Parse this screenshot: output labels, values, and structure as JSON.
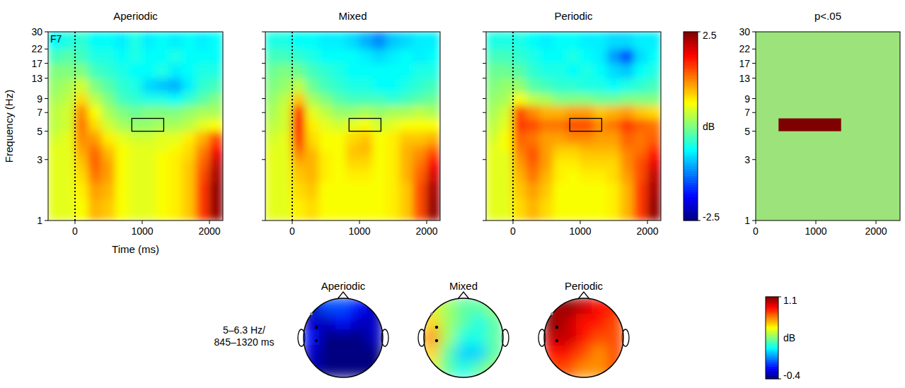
{
  "chart_data": [
    {
      "type": "heatmap",
      "title": "Aperiodic",
      "label": "F7",
      "xlabel": "Time (ms)",
      "ylabel": "Frequency (Hz)",
      "xlim": [
        -400,
        2200
      ],
      "xticks": [
        0,
        1000,
        2000
      ],
      "ylim": [
        1,
        30
      ],
      "yticks": [
        1,
        3,
        5,
        7,
        9,
        13,
        17,
        22,
        30
      ],
      "log": "y",
      "onset": 0,
      "box": {
        "x": [
          845,
          1320
        ],
        "y": [
          5,
          6.3
        ]
      },
      "x_bins": [
        -400,
        -200,
        0,
        200,
        400,
        600,
        800,
        1000,
        1200,
        1400,
        1600,
        1800,
        2000,
        2200
      ],
      "y_bins": [
        1,
        1.5,
        2,
        2.5,
        3,
        3.5,
        4,
        5,
        6.3,
        8,
        10,
        13,
        17,
        22,
        30
      ],
      "cells": [
        [
          0.5,
          0.5,
          0.6,
          1.0,
          0.9,
          0.6,
          0.5,
          0.5,
          0.6,
          0.7,
          0.9,
          1.6,
          2.4
        ],
        [
          0.5,
          0.5,
          0.7,
          1.1,
          1.0,
          0.6,
          0.5,
          0.5,
          0.6,
          0.7,
          0.9,
          1.6,
          2.4
        ],
        [
          0.5,
          0.5,
          0.8,
          1.3,
          1.1,
          0.6,
          0.5,
          0.5,
          0.6,
          0.7,
          0.9,
          1.5,
          2.3
        ],
        [
          0.5,
          0.5,
          0.9,
          1.4,
          1.1,
          0.6,
          0.5,
          0.5,
          0.6,
          0.7,
          0.9,
          1.4,
          2.2
        ],
        [
          0.5,
          0.5,
          1.0,
          1.4,
          1.0,
          0.6,
          0.5,
          0.5,
          0.6,
          0.7,
          0.8,
          1.3,
          2.0
        ],
        [
          0.5,
          0.5,
          1.1,
          1.3,
          0.9,
          0.6,
          0.5,
          0.5,
          0.5,
          0.6,
          0.8,
          1.2,
          1.8
        ],
        [
          0.4,
          0.5,
          1.2,
          1.1,
          0.7,
          0.5,
          0.4,
          0.4,
          0.5,
          0.5,
          0.7,
          1.0,
          1.5
        ],
        [
          0.3,
          0.4,
          1.3,
          0.8,
          0.4,
          0.2,
          0.1,
          0.1,
          0.2,
          0.2,
          0.3,
          0.5,
          0.6
        ],
        [
          0.3,
          0.4,
          1.2,
          0.6,
          0.2,
          0.0,
          -0.1,
          0.0,
          0.0,
          0.0,
          0.1,
          0.2,
          0.2
        ],
        [
          0.2,
          0.3,
          0.8,
          0.3,
          0.0,
          -0.3,
          -0.4,
          -0.5,
          -0.5,
          -0.6,
          -0.4,
          -0.2,
          0.0
        ],
        [
          0.1,
          0.2,
          0.4,
          0.0,
          -0.2,
          -0.4,
          -0.5,
          -0.8,
          -0.9,
          -1.0,
          -0.7,
          -0.4,
          -0.3
        ],
        [
          0.0,
          0.0,
          0.0,
          -0.3,
          -0.4,
          -0.5,
          -0.6,
          -0.6,
          -0.5,
          -0.7,
          -0.6,
          -0.5,
          -0.5
        ],
        [
          -0.3,
          -0.2,
          -0.3,
          -0.5,
          -0.5,
          -0.6,
          -0.5,
          -0.6,
          -0.6,
          -0.5,
          -0.6,
          -0.6,
          -0.6
        ],
        [
          -0.6,
          -0.5,
          -0.4,
          -0.6,
          -0.6,
          -0.7,
          -0.5,
          -0.7,
          -0.6,
          -0.7,
          -0.6,
          -0.7,
          -0.6
        ]
      ]
    },
    {
      "type": "heatmap",
      "title": "Mixed",
      "tick_labels": "x",
      "xlim": [
        -400,
        2200
      ],
      "xticks": [
        0,
        1000,
        2000
      ],
      "ylim": [
        1,
        30
      ],
      "yticks": [
        1,
        3,
        5,
        7,
        9,
        13,
        17,
        22,
        30
      ],
      "log": "y",
      "onset": 0,
      "box": {
        "x": [
          845,
          1320
        ],
        "y": [
          5,
          6.3
        ]
      },
      "x_bins": [
        -400,
        -200,
        0,
        200,
        400,
        600,
        800,
        1000,
        1200,
        1400,
        1600,
        1800,
        2000,
        2200
      ],
      "y_bins": [
        1,
        1.5,
        2,
        2.5,
        3,
        3.5,
        4,
        5,
        6.3,
        8,
        10,
        13,
        17,
        22,
        30
      ],
      "cells": [
        [
          0.5,
          0.5,
          0.7,
          0.8,
          0.6,
          0.6,
          0.6,
          0.6,
          0.6,
          0.7,
          0.9,
          1.5,
          2.4
        ],
        [
          0.5,
          0.5,
          0.8,
          0.9,
          0.6,
          0.6,
          0.6,
          0.6,
          0.6,
          0.7,
          0.9,
          1.5,
          2.3
        ],
        [
          0.5,
          0.5,
          0.9,
          1.0,
          0.7,
          0.6,
          0.7,
          0.7,
          0.6,
          0.7,
          1.0,
          1.4,
          2.1
        ],
        [
          0.5,
          0.5,
          1.0,
          1.0,
          0.7,
          0.6,
          0.8,
          0.8,
          0.6,
          0.7,
          1.0,
          1.3,
          1.9
        ],
        [
          0.5,
          0.5,
          1.2,
          1.0,
          0.7,
          0.6,
          0.9,
          0.9,
          0.6,
          0.7,
          1.0,
          1.2,
          1.6
        ],
        [
          0.5,
          0.5,
          1.4,
          0.9,
          0.6,
          0.6,
          0.9,
          1.0,
          0.6,
          0.7,
          1.0,
          1.1,
          1.3
        ],
        [
          0.4,
          0.5,
          1.6,
          0.8,
          0.6,
          0.6,
          0.8,
          0.9,
          0.6,
          0.7,
          0.9,
          0.9,
          1.0
        ],
        [
          0.3,
          0.4,
          1.8,
          0.7,
          0.5,
          0.4,
          0.5,
          0.6,
          0.4,
          0.5,
          0.6,
          0.6,
          0.6
        ],
        [
          0.2,
          0.4,
          1.6,
          0.5,
          0.3,
          0.1,
          0.1,
          0.2,
          0.1,
          0.2,
          0.2,
          0.3,
          0.2
        ],
        [
          0.1,
          0.3,
          0.9,
          0.2,
          0.0,
          -0.2,
          -0.3,
          -0.3,
          -0.3,
          -0.4,
          -0.3,
          -0.2,
          -0.1
        ],
        [
          0.0,
          0.1,
          0.3,
          -0.1,
          -0.3,
          -0.4,
          -0.5,
          -0.5,
          -0.6,
          -0.6,
          -0.5,
          -0.4,
          -0.3
        ],
        [
          -0.1,
          0.0,
          -0.1,
          -0.3,
          -0.4,
          -0.5,
          -0.6,
          -0.6,
          -0.6,
          -0.6,
          -0.6,
          -0.5,
          -0.5
        ],
        [
          -0.3,
          -0.3,
          -0.4,
          -0.5,
          -0.6,
          -0.6,
          -0.6,
          -0.7,
          -0.8,
          -0.7,
          -0.6,
          -0.7,
          -0.6
        ],
        [
          -0.5,
          -0.5,
          -0.6,
          -0.6,
          -0.7,
          -0.7,
          -0.8,
          -1.0,
          -1.2,
          -0.9,
          -0.8,
          -0.7,
          -0.7
        ]
      ]
    },
    {
      "type": "heatmap",
      "title": "Periodic",
      "tick_labels": "x",
      "xlim": [
        -400,
        2200
      ],
      "xticks": [
        0,
        1000,
        2000
      ],
      "ylim": [
        1,
        30
      ],
      "yticks": [
        1,
        3,
        5,
        7,
        9,
        13,
        17,
        22,
        30
      ],
      "log": "y",
      "onset": 0,
      "box": {
        "x": [
          845,
          1320
        ],
        "y": [
          5,
          6.3
        ]
      },
      "x_bins": [
        -400,
        -200,
        0,
        200,
        400,
        600,
        800,
        1000,
        1200,
        1400,
        1600,
        1800,
        2000,
        2200
      ],
      "y_bins": [
        1,
        1.5,
        2,
        2.5,
        3,
        3.5,
        4,
        5,
        6.3,
        8,
        10,
        13,
        17,
        22,
        30
      ],
      "cells": [
        [
          0.5,
          0.5,
          0.8,
          1.0,
          0.8,
          0.6,
          0.6,
          0.6,
          0.6,
          0.7,
          1.0,
          1.6,
          2.4
        ],
        [
          0.5,
          0.5,
          0.9,
          1.1,
          0.9,
          0.6,
          0.6,
          0.6,
          0.6,
          0.7,
          1.0,
          1.6,
          2.3
        ],
        [
          0.5,
          0.5,
          1.0,
          1.3,
          1.0,
          0.7,
          0.6,
          0.7,
          0.7,
          0.8,
          1.1,
          1.5,
          2.2
        ],
        [
          0.5,
          0.5,
          1.1,
          1.4,
          1.1,
          0.7,
          0.7,
          0.8,
          0.8,
          0.8,
          1.2,
          1.5,
          2.0
        ],
        [
          0.5,
          0.5,
          1.2,
          1.5,
          1.1,
          0.8,
          0.8,
          0.9,
          0.9,
          0.9,
          1.2,
          1.4,
          1.8
        ],
        [
          0.5,
          0.6,
          1.3,
          1.4,
          1.1,
          0.9,
          0.9,
          1.0,
          1.0,
          1.0,
          1.3,
          1.3,
          1.6
        ],
        [
          0.4,
          0.6,
          1.4,
          1.3,
          1.1,
          1.1,
          1.2,
          1.2,
          1.1,
          1.1,
          1.4,
          1.3,
          1.4
        ],
        [
          0.3,
          0.5,
          1.6,
          1.5,
          1.3,
          1.3,
          1.5,
          1.5,
          1.2,
          1.3,
          1.6,
          1.4,
          1.3
        ],
        [
          0.2,
          0.4,
          1.5,
          1.2,
          1.0,
          1.0,
          1.1,
          1.1,
          0.9,
          1.0,
          1.1,
          0.9,
          0.8
        ],
        [
          0.1,
          0.2,
          0.6,
          0.3,
          0.2,
          0.0,
          0.0,
          0.0,
          -0.1,
          -0.1,
          0.0,
          0.0,
          0.0
        ],
        [
          0.0,
          0.1,
          0.1,
          -0.2,
          -0.3,
          -0.4,
          -0.4,
          -0.5,
          -0.5,
          -0.6,
          -0.5,
          -0.4,
          -0.3
        ],
        [
          -0.1,
          -0.1,
          -0.2,
          -0.4,
          -0.5,
          -0.5,
          -0.6,
          -0.5,
          -0.6,
          -0.8,
          -0.9,
          -0.6,
          -0.5
        ],
        [
          -0.3,
          -0.3,
          -0.4,
          -0.5,
          -0.6,
          -0.6,
          -0.5,
          -0.6,
          -0.7,
          -1.1,
          -1.5,
          -0.8,
          -0.6
        ],
        [
          -0.5,
          -0.5,
          -0.5,
          -0.6,
          -0.7,
          -0.6,
          -0.6,
          -0.7,
          -0.7,
          -0.8,
          -0.8,
          -0.7,
          -0.7
        ]
      ]
    },
    {
      "type": "colorbar",
      "label": "dB",
      "range": [
        -2.5,
        2.5
      ],
      "ticks": [
        -2.5,
        2.5
      ]
    },
    {
      "type": "mask",
      "title": "p<.05",
      "xlim": [
        0,
        2400
      ],
      "xticks": [
        0,
        1000,
        2000
      ],
      "ylim": [
        1,
        30
      ],
      "yticks": [
        1,
        3,
        5,
        7,
        9,
        13,
        17,
        22,
        30
      ],
      "log": "y",
      "region": {
        "x": [
          380,
          1420
        ],
        "y": [
          5,
          6.3
        ]
      }
    },
    {
      "type": "topomap",
      "label": [
        "5–6.3 Hz/",
        "845–1320 ms"
      ],
      "color_range": [
        -0.4,
        1.1
      ],
      "color_ticks": [
        -0.4,
        1.1
      ],
      "color_label": "dB",
      "maps": [
        {
          "title": "Aperiodic",
          "cells": [
            [
              -0.3,
              -0.1,
              -0.1,
              -0.2,
              -0.3
            ],
            [
              -0.3,
              -0.3,
              -0.2,
              -0.3,
              -0.3
            ],
            [
              -0.2,
              -0.4,
              -0.4,
              -0.4,
              -0.3
            ],
            [
              -0.3,
              -0.4,
              -0.4,
              -0.4,
              -0.4
            ],
            [
              -0.3,
              -0.4,
              -0.4,
              -0.4,
              -0.4
            ]
          ]
        },
        {
          "title": "Mixed",
          "cells": [
            [
              0.5,
              0.4,
              0.3,
              0.3,
              0.4
            ],
            [
              0.6,
              0.4,
              0.3,
              0.2,
              0.3
            ],
            [
              0.7,
              0.4,
              0.2,
              0.2,
              0.3
            ],
            [
              0.6,
              0.3,
              0.1,
              0.1,
              0.3
            ],
            [
              0.5,
              0.3,
              0.2,
              0.3,
              0.4
            ]
          ]
        },
        {
          "title": "Periodic",
          "cells": [
            [
              1.0,
              1.1,
              1.0,
              0.9,
              0.9
            ],
            [
              1.1,
              1.0,
              0.9,
              0.9,
              0.8
            ],
            [
              1.0,
              1.0,
              0.9,
              0.8,
              0.8
            ],
            [
              0.9,
              0.9,
              0.8,
              0.7,
              0.8
            ],
            [
              0.8,
              0.8,
              0.7,
              0.7,
              0.8
            ]
          ]
        }
      ]
    }
  ]
}
